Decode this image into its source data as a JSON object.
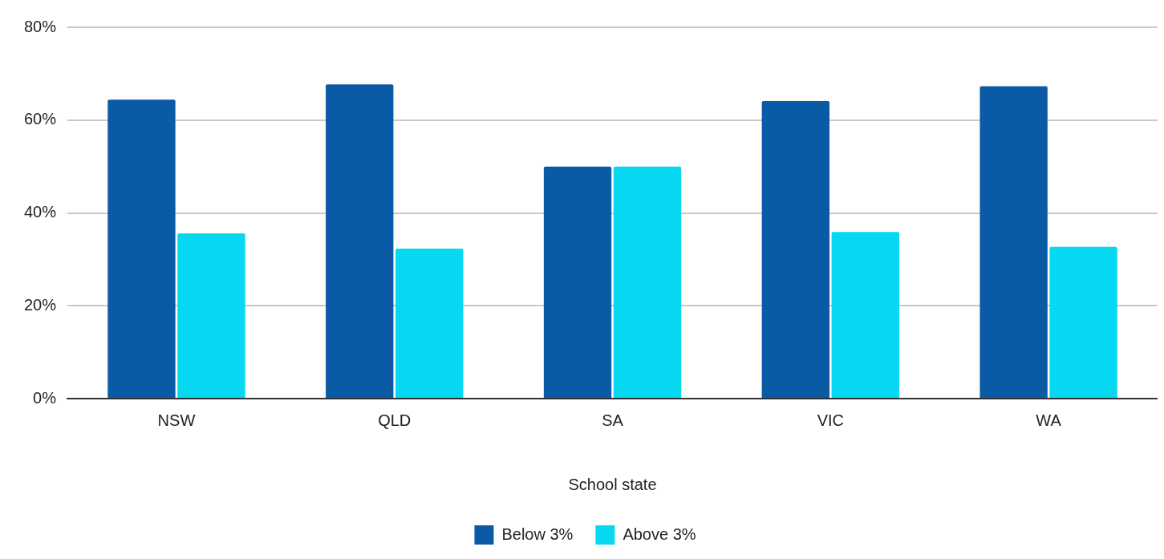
{
  "chart_data": {
    "type": "bar",
    "xlabel": "School state",
    "categories": [
      "NSW",
      "QLD",
      "SA",
      "VIC",
      "WA"
    ],
    "series": [
      {
        "name": "Below 3%",
        "color": "#0b5aa6",
        "values": [
          64.4,
          67.7,
          50,
          64.1,
          67.3
        ]
      },
      {
        "name": "Above 3%",
        "color": "#06d8f2",
        "values": [
          35.6,
          32.3,
          50,
          35.9,
          32.7
        ]
      }
    ],
    "ylim": [
      0,
      80
    ],
    "yticks": [
      {
        "value": 0,
        "label": "0%"
      },
      {
        "value": 20,
        "label": "20%"
      },
      {
        "value": 40,
        "label": "40%"
      },
      {
        "value": 60,
        "label": "60%"
      },
      {
        "value": 80,
        "label": "80%"
      }
    ],
    "grid": "y",
    "legend": "bottom"
  }
}
